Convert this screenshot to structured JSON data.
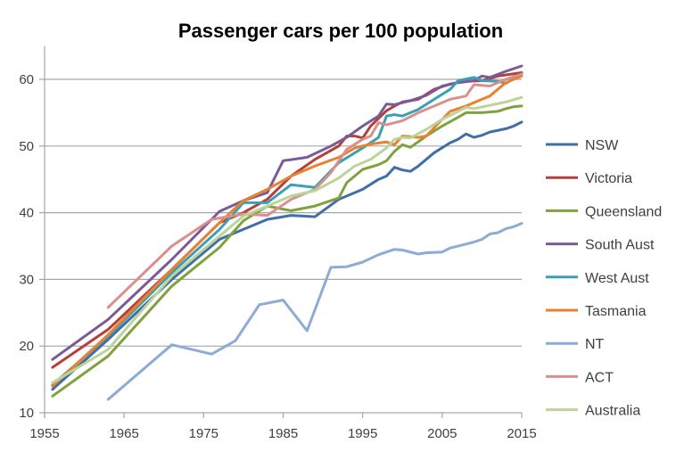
{
  "chart_data": {
    "type": "line",
    "title": "Passenger cars per 100 population",
    "xlabel": "",
    "ylabel": "",
    "xlim": [
      1955,
      2015
    ],
    "ylim": [
      10,
      65
    ],
    "xticks": [
      1955,
      1965,
      1975,
      1985,
      1995,
      2005,
      2015
    ],
    "yticks": [
      10,
      20,
      30,
      40,
      50,
      60
    ],
    "grid": true,
    "legend": "right",
    "series": [
      {
        "name": "NSW",
        "color": "#3f6ea8",
        "points": [
          [
            1956,
            13.5
          ],
          [
            1963,
            21
          ],
          [
            1971,
            30
          ],
          [
            1977,
            36
          ],
          [
            1980,
            37.5
          ],
          [
            1983,
            39
          ],
          [
            1986,
            39.6
          ],
          [
            1989,
            39.4
          ],
          [
            1992,
            42
          ],
          [
            1995,
            43.5
          ],
          [
            1997,
            45
          ],
          [
            1998,
            45.5
          ],
          [
            1999,
            46.8
          ],
          [
            2000,
            46.4
          ],
          [
            2001,
            46.2
          ],
          [
            2002,
            47
          ],
          [
            2004,
            49
          ],
          [
            2006,
            50.5
          ],
          [
            2007,
            51
          ],
          [
            2008,
            51.8
          ],
          [
            2009,
            51.3
          ],
          [
            2010,
            51.6
          ],
          [
            2011,
            52.1
          ],
          [
            2013,
            52.6
          ],
          [
            2014,
            53
          ],
          [
            2015,
            53.6
          ]
        ]
      },
      {
        "name": "Victoria",
        "color": "#b5403a",
        "points": [
          [
            1956,
            16.8
          ],
          [
            1963,
            22.5
          ],
          [
            1971,
            31.5
          ],
          [
            1977,
            38.5
          ],
          [
            1980,
            40
          ],
          [
            1983,
            42
          ],
          [
            1986,
            45.5
          ],
          [
            1989,
            48
          ],
          [
            1992,
            50
          ],
          [
            1993,
            51.5
          ],
          [
            1994,
            51.5
          ],
          [
            1995,
            51.2
          ],
          [
            1996,
            53
          ],
          [
            1998,
            55.3
          ],
          [
            1999,
            56
          ],
          [
            2000,
            56.6
          ],
          [
            2002,
            57
          ],
          [
            2004,
            58.5
          ],
          [
            2006,
            59.3
          ],
          [
            2008,
            59.7
          ],
          [
            2010,
            59.8
          ],
          [
            2012,
            60.5
          ],
          [
            2015,
            61
          ]
        ]
      },
      {
        "name": "Queensland",
        "color": "#7fa23f",
        "points": [
          [
            1956,
            12.5
          ],
          [
            1963,
            18.5
          ],
          [
            1971,
            29
          ],
          [
            1977,
            34.8
          ],
          [
            1980,
            38.8
          ],
          [
            1983,
            41
          ],
          [
            1986,
            40.3
          ],
          [
            1989,
            41
          ],
          [
            1992,
            42.2
          ],
          [
            1993,
            44.5
          ],
          [
            1995,
            46.5
          ],
          [
            1997,
            47.2
          ],
          [
            1998,
            47.8
          ],
          [
            1999,
            49.2
          ],
          [
            2000,
            50.2
          ],
          [
            2001,
            49.8
          ],
          [
            2003,
            51.5
          ],
          [
            2005,
            53
          ],
          [
            2007,
            54.3
          ],
          [
            2008,
            55
          ],
          [
            2010,
            55
          ],
          [
            2012,
            55.2
          ],
          [
            2013,
            55.6
          ],
          [
            2014,
            55.9
          ],
          [
            2015,
            56
          ]
        ]
      },
      {
        "name": "South Aust",
        "color": "#7a5b98",
        "points": [
          [
            1956,
            18
          ],
          [
            1963,
            24
          ],
          [
            1971,
            33
          ],
          [
            1977,
            40.2
          ],
          [
            1980,
            41.8
          ],
          [
            1983,
            43
          ],
          [
            1985,
            47.8
          ],
          [
            1988,
            48.3
          ],
          [
            1991,
            50
          ],
          [
            1993,
            51.3
          ],
          [
            1995,
            53
          ],
          [
            1997,
            54.5
          ],
          [
            1998,
            56.3
          ],
          [
            1999,
            56.2
          ],
          [
            2001,
            56.8
          ],
          [
            2003,
            57.6
          ],
          [
            2005,
            59
          ],
          [
            2007,
            59.5
          ],
          [
            2009,
            59.8
          ],
          [
            2010,
            60.5
          ],
          [
            2011,
            60.3
          ],
          [
            2013,
            61.2
          ],
          [
            2015,
            62
          ]
        ]
      },
      {
        "name": "West Aust",
        "color": "#3aa0b6",
        "points": [
          [
            1956,
            14.2
          ],
          [
            1963,
            21.5
          ],
          [
            1971,
            31
          ],
          [
            1977,
            37.5
          ],
          [
            1980,
            41.5
          ],
          [
            1983,
            41.5
          ],
          [
            1986,
            44.2
          ],
          [
            1989,
            43.8
          ],
          [
            1992,
            47.5
          ],
          [
            1995,
            49.7
          ],
          [
            1997,
            51.3
          ],
          [
            1998,
            54.5
          ],
          [
            1999,
            54.7
          ],
          [
            2000,
            54.5
          ],
          [
            2002,
            55.5
          ],
          [
            2004,
            57
          ],
          [
            2006,
            58.5
          ],
          [
            2007,
            59.8
          ],
          [
            2009,
            60.3
          ],
          [
            2010,
            59.8
          ],
          [
            2012,
            59.7
          ],
          [
            2013,
            59.4
          ],
          [
            2015,
            60.8
          ]
        ]
      },
      {
        "name": "Tasmania",
        "color": "#e8822e",
        "points": [
          [
            1956,
            14
          ],
          [
            1963,
            21.7
          ],
          [
            1971,
            31.5
          ],
          [
            1977,
            38.5
          ],
          [
            1980,
            41.8
          ],
          [
            1983,
            43.5
          ],
          [
            1986,
            45.5
          ],
          [
            1989,
            47
          ],
          [
            1992,
            48.3
          ],
          [
            1994,
            49.7
          ],
          [
            1996,
            50.3
          ],
          [
            1998,
            50.6
          ],
          [
            1999,
            50.2
          ],
          [
            2000,
            51.5
          ],
          [
            2002,
            51.3
          ],
          [
            2003,
            51.5
          ],
          [
            2005,
            54
          ],
          [
            2006,
            55.2
          ],
          [
            2008,
            56
          ],
          [
            2010,
            57
          ],
          [
            2011,
            57.5
          ],
          [
            2013,
            59.5
          ],
          [
            2015,
            60.5
          ]
        ]
      },
      {
        "name": "NT",
        "color": "#8eaad6",
        "points": [
          [
            1963,
            12
          ],
          [
            1971,
            20.2
          ],
          [
            1976,
            18.8
          ],
          [
            1979,
            20.8
          ],
          [
            1982,
            26.2
          ],
          [
            1985,
            26.9
          ],
          [
            1988,
            22.3
          ],
          [
            1991,
            31.8
          ],
          [
            1993,
            31.9
          ],
          [
            1995,
            32.6
          ],
          [
            1997,
            33.7
          ],
          [
            1999,
            34.5
          ],
          [
            2000,
            34.4
          ],
          [
            2002,
            33.8
          ],
          [
            2003,
            34
          ],
          [
            2005,
            34.1
          ],
          [
            2006,
            34.7
          ],
          [
            2008,
            35.3
          ],
          [
            2009,
            35.6
          ],
          [
            2010,
            36
          ],
          [
            2011,
            36.8
          ],
          [
            2012,
            37
          ],
          [
            2013,
            37.6
          ],
          [
            2014,
            37.9
          ],
          [
            2015,
            38.4
          ]
        ]
      },
      {
        "name": "ACT",
        "color": "#d9908d",
        "points": [
          [
            1963,
            25.8
          ],
          [
            1971,
            35
          ],
          [
            1976,
            39
          ],
          [
            1980,
            39.8
          ],
          [
            1983,
            39.6
          ],
          [
            1986,
            42
          ],
          [
            1989,
            43.5
          ],
          [
            1991,
            46
          ],
          [
            1993,
            49.5
          ],
          [
            1995,
            51
          ],
          [
            1996,
            51.5
          ],
          [
            1997,
            53.5
          ],
          [
            1998,
            53.2
          ],
          [
            2000,
            53.8
          ],
          [
            2002,
            55
          ],
          [
            2004,
            56
          ],
          [
            2006,
            57
          ],
          [
            2008,
            57.5
          ],
          [
            2009,
            59.2
          ],
          [
            2011,
            59
          ],
          [
            2013,
            60
          ],
          [
            2015,
            60.8
          ]
        ]
      },
      {
        "name": "Australia",
        "color": "#bcd49a",
        "points": [
          [
            1956,
            14.5
          ],
          [
            1963,
            19.5
          ],
          [
            1971,
            30.5
          ],
          [
            1977,
            36.5
          ],
          [
            1980,
            39.5
          ],
          [
            1983,
            41
          ],
          [
            1986,
            42.5
          ],
          [
            1989,
            43.3
          ],
          [
            1992,
            45.2
          ],
          [
            1994,
            47
          ],
          [
            1996,
            48
          ],
          [
            1998,
            49.7
          ],
          [
            1999,
            51
          ],
          [
            2000,
            51.3
          ],
          [
            2001,
            51.2
          ],
          [
            2003,
            52.5
          ],
          [
            2005,
            54
          ],
          [
            2007,
            55.2
          ],
          [
            2008,
            55.8
          ],
          [
            2009,
            55.6
          ],
          [
            2011,
            56.1
          ],
          [
            2013,
            56.6
          ],
          [
            2015,
            57.3
          ]
        ]
      }
    ]
  }
}
